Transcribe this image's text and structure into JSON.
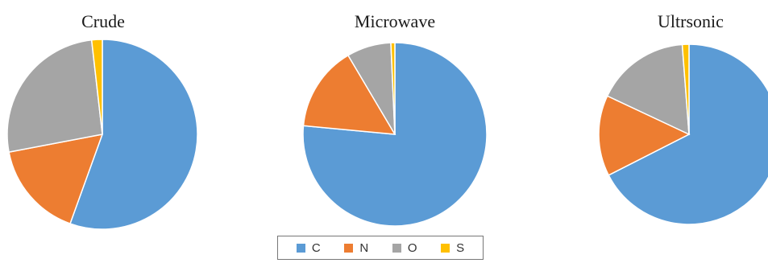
{
  "chart_data": [
    {
      "type": "pie",
      "title": "Crude",
      "categories": [
        "C",
        "N",
        "O",
        "S"
      ],
      "values": [
        55.5,
        16.5,
        26.2,
        1.8
      ],
      "colors": [
        "#5b9bd5",
        "#ed7d31",
        "#a5a5a5",
        "#ffc000"
      ]
    },
    {
      "type": "pie",
      "title": "Microwave",
      "categories": [
        "C",
        "N",
        "O",
        "S"
      ],
      "values": [
        76.5,
        15.0,
        7.8,
        0.7
      ],
      "colors": [
        "#5b9bd5",
        "#ed7d31",
        "#a5a5a5",
        "#ffc000"
      ]
    },
    {
      "type": "pie",
      "title": "Ultrsonic",
      "categories": [
        "C",
        "N",
        "O",
        "S"
      ],
      "values": [
        67.5,
        14.5,
        16.8,
        1.2
      ],
      "colors": [
        "#5b9bd5",
        "#ed7d31",
        "#a5a5a5",
        "#ffc000"
      ]
    }
  ],
  "legend": {
    "items": [
      {
        "label": "C",
        "color": "#5b9bd5"
      },
      {
        "label": "N",
        "color": "#ed7d31"
      },
      {
        "label": "O",
        "color": "#a5a5a5"
      },
      {
        "label": "S",
        "color": "#ffc000"
      }
    ]
  }
}
